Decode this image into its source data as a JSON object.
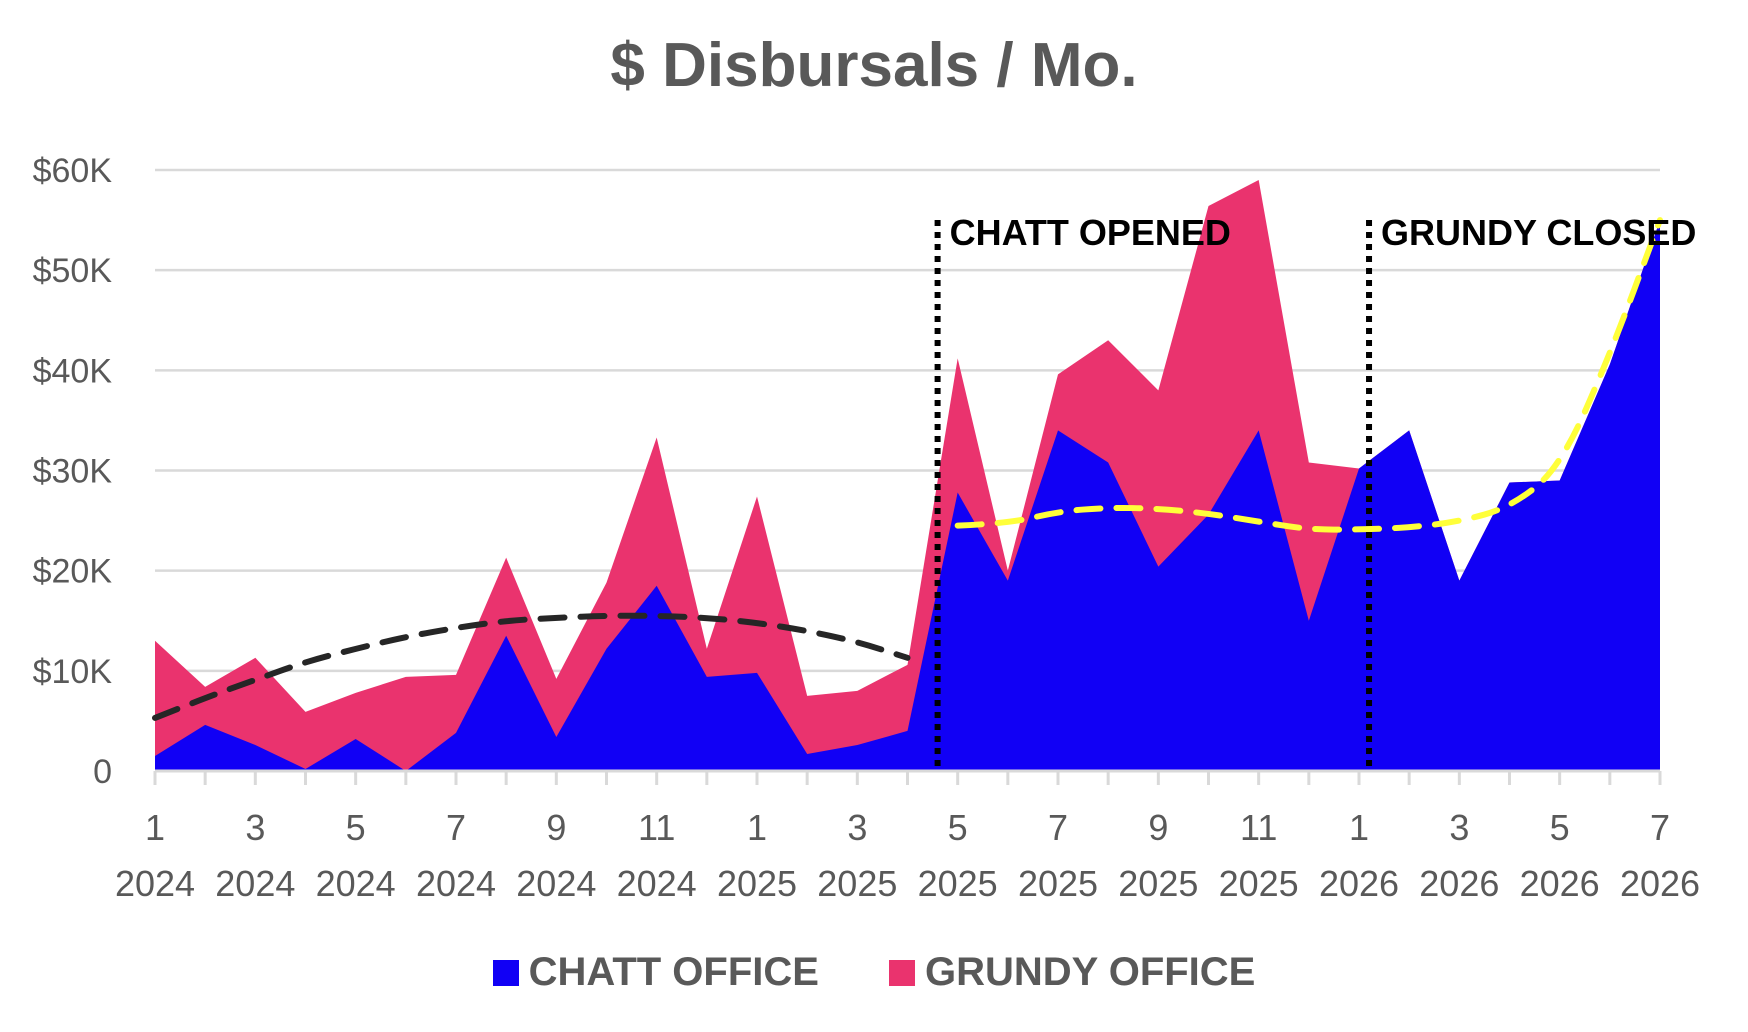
{
  "chart_data": {
    "type": "area",
    "stacked": true,
    "title": "$ Disbursals / Mo.",
    "ylim": [
      0,
      60000
    ],
    "y_ticks": [
      {
        "value": 0,
        "label": "0"
      },
      {
        "value": 10000,
        "label": "$10K"
      },
      {
        "value": 20000,
        "label": "$20K"
      },
      {
        "value": 30000,
        "label": "$30K"
      },
      {
        "value": 40000,
        "label": "$40K"
      },
      {
        "value": 50000,
        "label": "$50K"
      },
      {
        "value": 60000,
        "label": "$60K"
      }
    ],
    "x_tick_labels": [
      {
        "index": 0,
        "month": "1",
        "year": "2024"
      },
      {
        "index": 2,
        "month": "3",
        "year": "2024"
      },
      {
        "index": 4,
        "month": "5",
        "year": "2024"
      },
      {
        "index": 6,
        "month": "7",
        "year": "2024"
      },
      {
        "index": 8,
        "month": "9",
        "year": "2024"
      },
      {
        "index": 10,
        "month": "11",
        "year": "2024"
      },
      {
        "index": 12,
        "month": "1",
        "year": "2025"
      },
      {
        "index": 14,
        "month": "3",
        "year": "2025"
      },
      {
        "index": 16,
        "month": "5",
        "year": "2025"
      },
      {
        "index": 18,
        "month": "7",
        "year": "2025"
      },
      {
        "index": 20,
        "month": "9",
        "year": "2025"
      },
      {
        "index": 22,
        "month": "11",
        "year": "2025"
      },
      {
        "index": 24,
        "month": "1",
        "year": "2026"
      },
      {
        "index": 26,
        "month": "3",
        "year": "2026"
      },
      {
        "index": 28,
        "month": "5",
        "year": "2026"
      },
      {
        "index": 30,
        "month": "7",
        "year": "2026"
      }
    ],
    "categories": [
      "2024-01",
      "2024-02",
      "2024-03",
      "2024-04",
      "2024-05",
      "2024-06",
      "2024-07",
      "2024-08",
      "2024-09",
      "2024-10",
      "2024-11",
      "2024-12",
      "2025-01",
      "2025-02",
      "2025-03",
      "2025-04",
      "2025-05",
      "2025-06",
      "2025-07",
      "2025-08",
      "2025-09",
      "2025-10",
      "2025-11",
      "2025-12",
      "2026-01",
      "2026-02",
      "2026-03",
      "2026-04",
      "2026-05",
      "2026-06",
      "2026-07"
    ],
    "series": [
      {
        "name": "CHATT OFFICE",
        "color": "#1100f5",
        "values": [
          1500,
          4600,
          2600,
          200,
          3200,
          0,
          3800,
          13500,
          3400,
          12200,
          18500,
          9400,
          9800,
          1700,
          2600,
          4000,
          27800,
          19000,
          34000,
          30800,
          20400,
          25600,
          34000,
          15000,
          30200,
          34000,
          19000,
          28800,
          29000,
          40600,
          55000
        ]
      },
      {
        "name": "GRUNDY OFFICE",
        "color": "#ea336e",
        "values": [
          11500,
          3800,
          8700,
          5700,
          4600,
          9400,
          5800,
          7800,
          5800,
          6600,
          14800,
          2800,
          17600,
          5800,
          5400,
          6600,
          13400,
          1000,
          5600,
          12200,
          17600,
          30800,
          25000,
          15800,
          0,
          0,
          0,
          0,
          0,
          0,
          0
        ]
      }
    ],
    "trendlines": [
      {
        "color": "#262626",
        "from_index": 0,
        "to_index": 15,
        "values": [
          5300,
          7300,
          9100,
          10900,
          12200,
          13400,
          14300,
          15000,
          15300,
          15500,
          15500,
          15300,
          14800,
          14000,
          12900,
          11300
        ]
      },
      {
        "color": "#ffff3a",
        "from_index": 16,
        "to_index": 30,
        "values": [
          24500,
          24700,
          25900,
          26300,
          26200,
          25700,
          24900,
          24100,
          24100,
          24300,
          24900,
          26300,
          30200,
          41500,
          55000
        ]
      }
    ],
    "annotations": [
      {
        "label": "CHATT OPENED",
        "at_index": 15.6
      },
      {
        "label": "GRUNDY CLOSED",
        "at_index": 24.2
      }
    ],
    "grid": true,
    "legend": "bottom"
  }
}
